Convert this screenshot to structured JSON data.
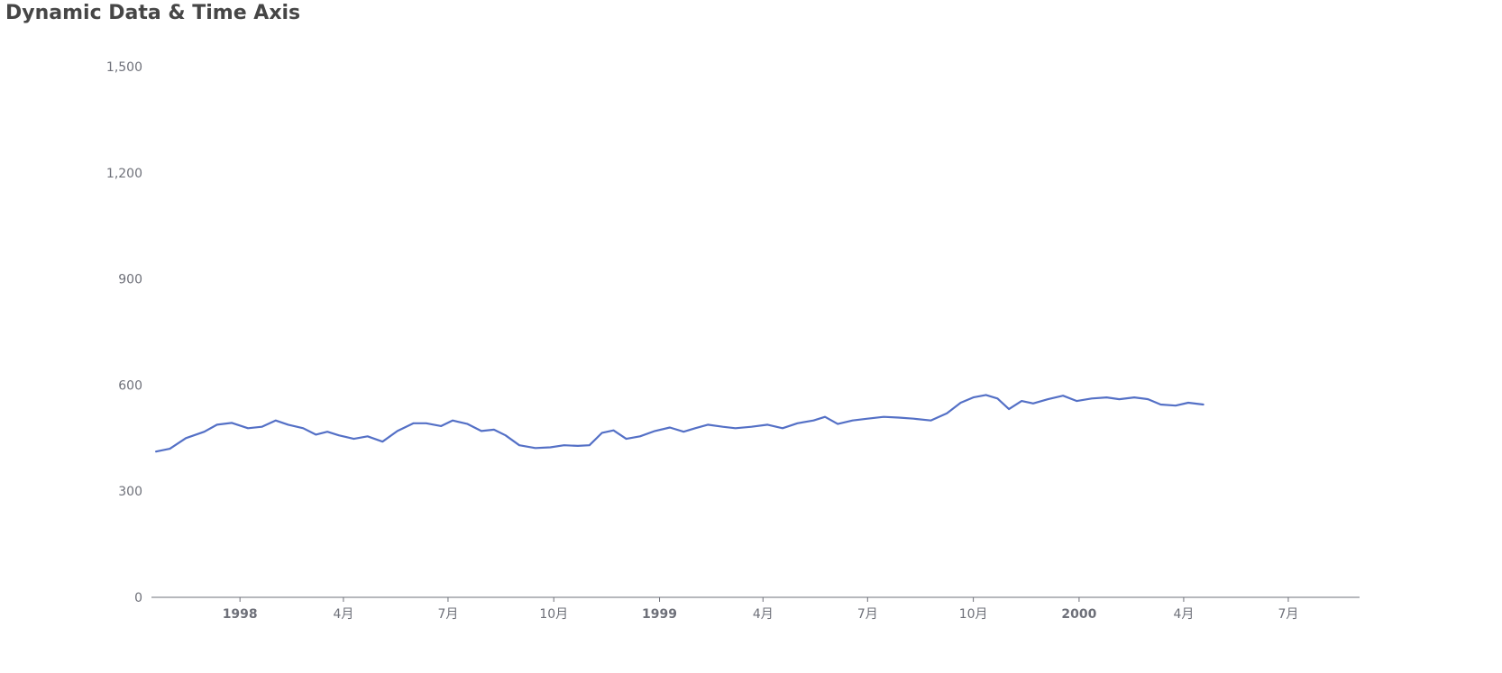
{
  "chart_data": {
    "type": "line",
    "title": "Dynamic Data & Time Axis",
    "xlabel": "",
    "ylabel": "",
    "xlim": [
      "1997-10-16",
      "2000-09-01"
    ],
    "ylim": [
      0,
      1500
    ],
    "y_ticks": [
      {
        "value": 0,
        "label": "0"
      },
      {
        "value": 300,
        "label": "300"
      },
      {
        "value": 600,
        "label": "600"
      },
      {
        "value": 900,
        "label": "900"
      },
      {
        "value": 1200,
        "label": "1,200"
      },
      {
        "value": 1500,
        "label": "1,500"
      }
    ],
    "x_ticks": [
      {
        "date": "1998-01-01",
        "label": "1998",
        "bold": true
      },
      {
        "date": "1998-04-01",
        "label": "4月",
        "bold": false
      },
      {
        "date": "1998-07-01",
        "label": "7月",
        "bold": false
      },
      {
        "date": "1998-10-01",
        "label": "10月",
        "bold": false
      },
      {
        "date": "1999-01-01",
        "label": "1999",
        "bold": true
      },
      {
        "date": "1999-04-01",
        "label": "4月",
        "bold": false
      },
      {
        "date": "1999-07-01",
        "label": "7月",
        "bold": false
      },
      {
        "date": "1999-10-01",
        "label": "10月",
        "bold": false
      },
      {
        "date": "2000-01-01",
        "label": "2000",
        "bold": true
      },
      {
        "date": "2000-04-01",
        "label": "4月",
        "bold": false
      },
      {
        "date": "2000-07-01",
        "label": "7月",
        "bold": false
      }
    ],
    "grid": false,
    "legend": "none",
    "series": [
      {
        "color": "#5470c6",
        "points": [
          [
            "1997-10-20",
            412
          ],
          [
            "1997-11-01",
            420
          ],
          [
            "1997-11-15",
            450
          ],
          [
            "1997-12-01",
            468
          ],
          [
            "1997-12-12",
            488
          ],
          [
            "1997-12-25",
            493
          ],
          [
            "1998-01-08",
            478
          ],
          [
            "1998-01-20",
            482
          ],
          [
            "1998-02-01",
            500
          ],
          [
            "1998-02-12",
            488
          ],
          [
            "1998-02-25",
            478
          ],
          [
            "1998-03-08",
            460
          ],
          [
            "1998-03-18",
            468
          ],
          [
            "1998-03-28",
            458
          ],
          [
            "1998-04-10",
            448
          ],
          [
            "1998-04-22",
            455
          ],
          [
            "1998-05-05",
            440
          ],
          [
            "1998-05-18",
            470
          ],
          [
            "1998-06-01",
            492
          ],
          [
            "1998-06-12",
            492
          ],
          [
            "1998-06-25",
            484
          ],
          [
            "1998-07-05",
            500
          ],
          [
            "1998-07-18",
            490
          ],
          [
            "1998-07-30",
            470
          ],
          [
            "1998-08-10",
            474
          ],
          [
            "1998-08-20",
            458
          ],
          [
            "1998-09-01",
            430
          ],
          [
            "1998-09-15",
            422
          ],
          [
            "1998-09-28",
            424
          ],
          [
            "1998-10-10",
            430
          ],
          [
            "1998-10-22",
            428
          ],
          [
            "1998-11-01",
            430
          ],
          [
            "1998-11-12",
            465
          ],
          [
            "1998-11-22",
            472
          ],
          [
            "1998-12-03",
            448
          ],
          [
            "1998-12-15",
            455
          ],
          [
            "1998-12-28",
            470
          ],
          [
            "1999-01-10",
            480
          ],
          [
            "1999-01-22",
            468
          ],
          [
            "1999-02-01",
            478
          ],
          [
            "1999-02-12",
            488
          ],
          [
            "1999-02-25",
            482
          ],
          [
            "1999-03-08",
            478
          ],
          [
            "1999-03-22",
            482
          ],
          [
            "1999-04-05",
            488
          ],
          [
            "1999-04-18",
            478
          ],
          [
            "1999-05-01",
            492
          ],
          [
            "1999-05-15",
            500
          ],
          [
            "1999-05-25",
            510
          ],
          [
            "1999-06-05",
            490
          ],
          [
            "1999-06-18",
            500
          ],
          [
            "1999-07-01",
            505
          ],
          [
            "1999-07-15",
            510
          ],
          [
            "1999-07-28",
            508
          ],
          [
            "1999-08-10",
            505
          ],
          [
            "1999-08-25",
            500
          ],
          [
            "1999-09-08",
            520
          ],
          [
            "1999-09-20",
            550
          ],
          [
            "1999-10-01",
            565
          ],
          [
            "1999-10-12",
            572
          ],
          [
            "1999-10-22",
            562
          ],
          [
            "1999-11-01",
            532
          ],
          [
            "1999-11-12",
            555
          ],
          [
            "1999-11-22",
            548
          ],
          [
            "1999-12-05",
            560
          ],
          [
            "1999-12-18",
            570
          ],
          [
            "1999-12-30",
            555
          ],
          [
            "2000-01-12",
            562
          ],
          [
            "2000-01-25",
            565
          ],
          [
            "2000-02-05",
            560
          ],
          [
            "2000-02-18",
            565
          ],
          [
            "2000-03-01",
            560
          ],
          [
            "2000-03-12",
            545
          ],
          [
            "2000-03-25",
            542
          ],
          [
            "2000-04-05",
            550
          ],
          [
            "2000-04-18",
            545
          ]
        ]
      }
    ]
  }
}
